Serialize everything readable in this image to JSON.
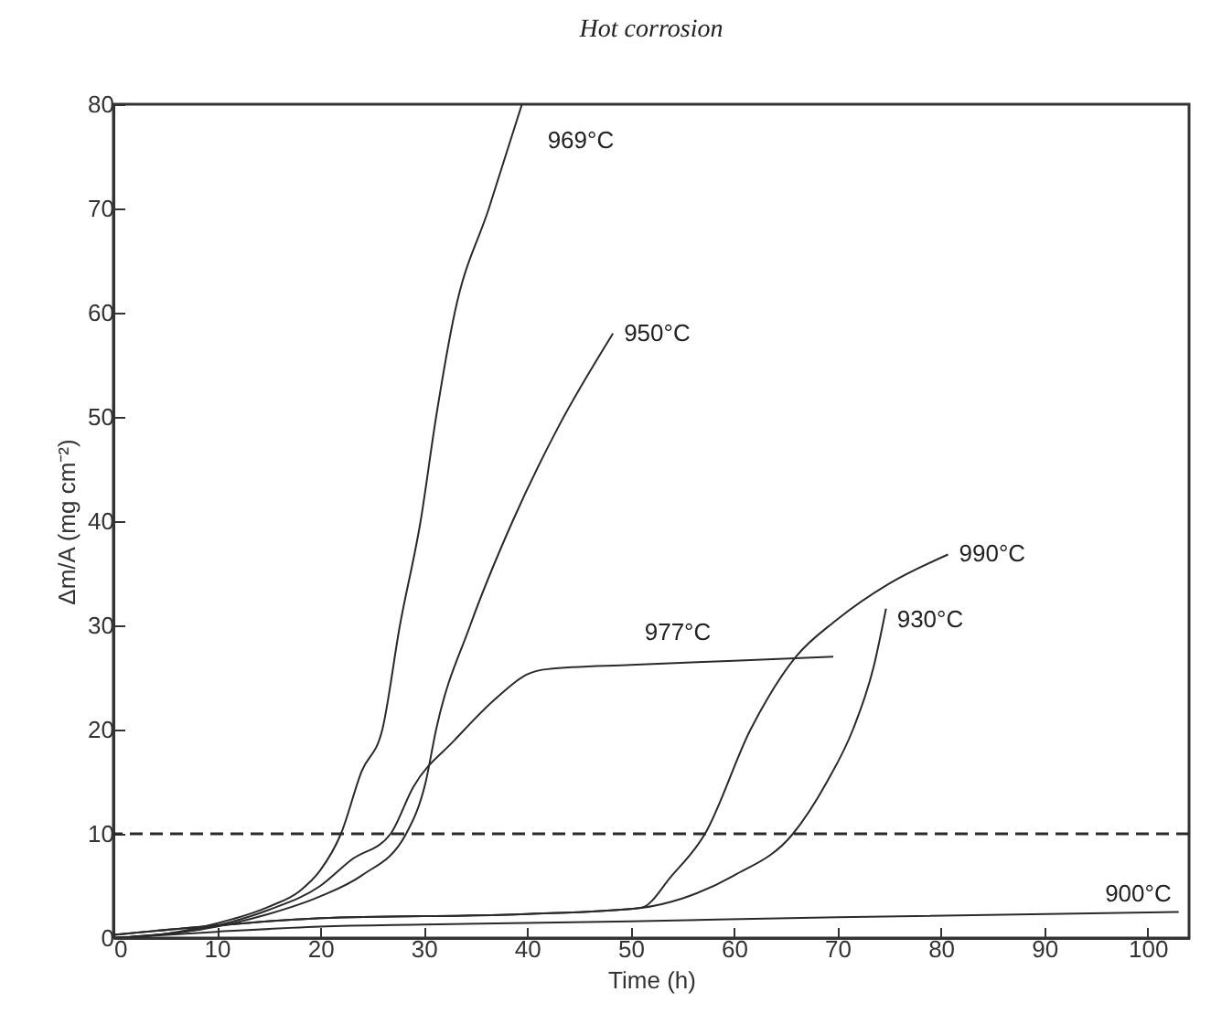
{
  "chart_data": {
    "type": "line",
    "title": "Hot corrosion",
    "xlabel": "Time (h)",
    "ylabel": "Δm/A (mg cm⁻²)",
    "xlim": [
      0,
      104
    ],
    "xticks": [
      0,
      10,
      20,
      30,
      40,
      50,
      60,
      70,
      80,
      90,
      100
    ],
    "ylim": [
      0,
      80
    ],
    "yticks": [
      0,
      10,
      20,
      30,
      40,
      50,
      60,
      70,
      80
    ],
    "series": [
      {
        "name": "969°C",
        "color": "#2a2a2a",
        "x": [
          0,
          5,
          10,
          15,
          18,
          20,
          22,
          24,
          26,
          27.7,
          29.7,
          31.2,
          33,
          36.3,
          39.5
        ],
        "values": [
          0,
          0.4,
          1.4,
          3,
          4.5,
          6.5,
          10,
          16,
          20,
          30,
          40,
          50,
          60,
          70,
          80
        ]
      },
      {
        "name": "950°C",
        "color": "#2a2a2a",
        "x": [
          0,
          10,
          15,
          20,
          24,
          28.3,
          30.2,
          31.2,
          34.5,
          38.6,
          43,
          48.3
        ],
        "values": [
          0,
          1.1,
          2.3,
          4,
          6,
          10,
          15,
          20,
          30,
          40,
          49,
          58
        ]
      },
      {
        "name": "977°C",
        "color": "#2a2a2a",
        "x": [
          0,
          10,
          15,
          20,
          23,
          26.8,
          29,
          33,
          37,
          40,
          42,
          50,
          60,
          69.6
        ],
        "values": [
          0,
          1.2,
          2.7,
          5,
          7.5,
          10,
          14.5,
          19,
          23,
          25.3,
          25.8,
          26.2,
          26.6,
          27
        ]
      },
      {
        "name": "990°C",
        "color": "#2a2a2a",
        "x": [
          0,
          10,
          20,
          40,
          51,
          54,
          57.2,
          61.6,
          66,
          69.9,
          75,
          80.7
        ],
        "values": [
          0.3,
          1.2,
          1.9,
          2.3,
          2.9,
          6,
          10,
          20,
          27,
          30.5,
          34,
          36.8
        ]
      },
      {
        "name": "930°C",
        "color": "#2a2a2a",
        "x": [
          0,
          10,
          20,
          40,
          51,
          55,
          60,
          65.7,
          69,
          71.5,
          73.5,
          74.7
        ],
        "values": [
          0.3,
          1.2,
          1.9,
          2.3,
          2.9,
          3.8,
          6,
          10,
          15,
          20,
          26,
          31.6
        ]
      },
      {
        "name": "900°C",
        "color": "#2a2a2a",
        "x": [
          0,
          10,
          20,
          30,
          50,
          70,
          103
        ],
        "values": [
          0,
          0.6,
          1.1,
          1.3,
          1.6,
          2,
          2.5
        ]
      }
    ],
    "ref_lines": [
      {
        "axis": "y",
        "value": 10,
        "line_style": "dashed",
        "color": "#2a2a2a"
      }
    ]
  }
}
